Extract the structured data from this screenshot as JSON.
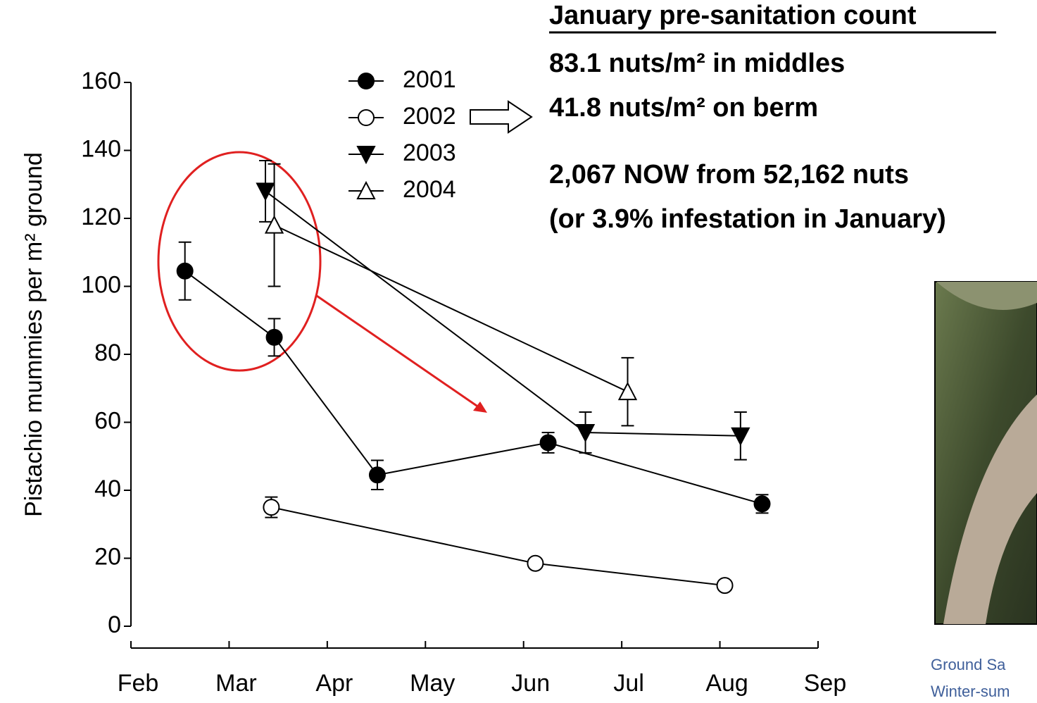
{
  "chart_data": {
    "type": "line",
    "y_label": "Pistachio mummies per m² ground",
    "xlim": [
      2,
      9
    ],
    "xticks": [
      {
        "value": 2,
        "label": "Feb"
      },
      {
        "value": 3,
        "label": "Mar"
      },
      {
        "value": 4,
        "label": "Apr"
      },
      {
        "value": 5,
        "label": "May"
      },
      {
        "value": 6,
        "label": "Jun"
      },
      {
        "value": 7,
        "label": "Jul"
      },
      {
        "value": 8,
        "label": "Aug"
      },
      {
        "value": 9,
        "label": "Sep"
      }
    ],
    "ylim": [
      0,
      160
    ],
    "yticks": [
      0,
      20,
      40,
      60,
      80,
      100,
      120,
      140,
      160
    ],
    "series": [
      {
        "name": "2001",
        "color": "#000000",
        "marker": "circle-filled",
        "x": [
          2.55,
          3.46,
          4.51,
          6.25,
          8.43
        ],
        "values": [
          104.5,
          85,
          44.5,
          54,
          36
        ],
        "errors": [
          8.5,
          5.5,
          4.3,
          3,
          2.7
        ]
      },
      {
        "name": "2002",
        "color": "#000000",
        "marker": "circle-open",
        "x": [
          3.43,
          6.12,
          8.05
        ],
        "values": [
          35,
          18.5,
          12
        ],
        "errors": [
          3,
          null,
          null
        ]
      },
      {
        "name": "2003",
        "color": "#000000",
        "marker": "triangle-down-filled",
        "x": [
          3.37,
          6.63,
          8.21
        ],
        "values": [
          128,
          57,
          56
        ],
        "errors": [
          9,
          6,
          7
        ]
      },
      {
        "name": "2004",
        "color": "#000000",
        "marker": "triangle-up-open",
        "x": [
          3.46,
          7.06
        ],
        "values": [
          118,
          69
        ],
        "errors": [
          18,
          10
        ]
      }
    ]
  },
  "annotation": {
    "title": "January pre-sanitation count",
    "lines": [
      "83.1 nuts/m² in middles",
      "41.8 nuts/m² on berm",
      "2,067 NOW from 52,162 nuts",
      "(or 3.9% infestation in January)"
    ]
  },
  "photo_caption": [
    "Ground Sa",
    "Winter-sum"
  ]
}
